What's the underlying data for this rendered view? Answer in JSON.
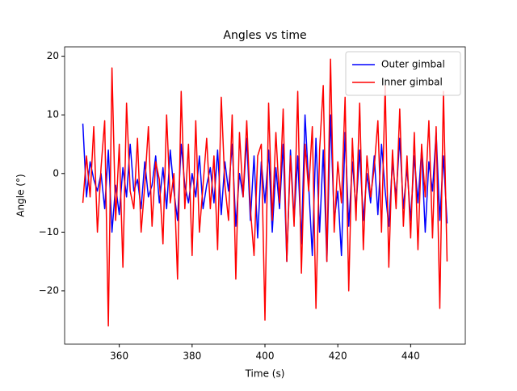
{
  "chart_data": {
    "type": "line",
    "title": "Angles vs time",
    "xlabel": "Time (s)",
    "ylabel": "Angle (°)",
    "x": [
      350,
      351,
      352,
      353,
      354,
      355,
      356,
      357,
      358,
      359,
      360,
      361,
      362,
      363,
      364,
      365,
      366,
      367,
      368,
      369,
      370,
      371,
      372,
      373,
      374,
      375,
      376,
      377,
      378,
      379,
      380,
      381,
      382,
      383,
      384,
      385,
      386,
      387,
      388,
      389,
      390,
      391,
      392,
      393,
      394,
      395,
      396,
      397,
      398,
      399,
      400,
      401,
      402,
      403,
      404,
      405,
      406,
      407,
      408,
      409,
      410,
      411,
      412,
      413,
      414,
      415,
      416,
      417,
      418,
      419,
      420,
      421,
      422,
      423,
      424,
      425,
      426,
      427,
      428,
      429,
      430,
      431,
      432,
      433,
      434,
      435,
      436,
      437,
      438,
      439,
      440,
      441,
      442,
      443,
      444,
      445,
      446,
      447,
      448,
      449,
      450
    ],
    "series": [
      {
        "name": "Outer gimbal",
        "color": "#0000ff",
        "values": [
          8.5,
          -4,
          2,
          -1,
          -3,
          0,
          -6,
          4,
          -10,
          -2,
          -7,
          1,
          -4,
          5,
          -3,
          -1,
          -6,
          2,
          -4,
          -2,
          3,
          -5,
          1,
          -6,
          4,
          -3,
          -8,
          5,
          -2,
          -5,
          0,
          -4,
          3,
          -6,
          -2,
          1,
          -5,
          4,
          -7,
          2,
          -3,
          5,
          -9,
          0,
          -4,
          6,
          -8,
          3,
          -11,
          2,
          -5,
          4,
          -10,
          1,
          -6,
          5,
          -15,
          4,
          -8,
          3,
          -12,
          10,
          -2,
          -14,
          6,
          -10,
          4,
          -15,
          10,
          -8,
          -3,
          -14,
          7,
          -9,
          2,
          -6,
          4,
          -8,
          0,
          -5,
          3,
          -7,
          5,
          -3,
          -9,
          2,
          -4,
          6,
          -6,
          1,
          -8,
          3,
          -5,
          4,
          -10,
          2,
          -3,
          7,
          -8,
          3,
          -8.5
        ]
      },
      {
        "name": "Inner gimbal",
        "color": "#ff0000",
        "values": [
          -5,
          3,
          -4,
          8,
          -10,
          1,
          9,
          -26,
          18,
          -8,
          5,
          -16,
          12,
          -3,
          -6,
          6,
          -10,
          -2,
          8,
          -9,
          2,
          -1,
          -12,
          10,
          -5,
          0,
          -18,
          14,
          -6,
          5,
          -14,
          9,
          -10,
          -2,
          6,
          -6,
          3,
          -13,
          13,
          -2,
          -8,
          10,
          -18,
          7,
          -4,
          9,
          -6,
          -14,
          3,
          5,
          -25,
          12,
          -8,
          7,
          -5,
          11,
          -15,
          3,
          -9,
          14,
          -17,
          5,
          -3,
          8,
          -23,
          4,
          15,
          -15,
          19.5,
          -10,
          2,
          -5,
          13,
          -20,
          6,
          -8,
          12,
          -13,
          3,
          -4,
          1,
          9,
          -10,
          15,
          -16,
          4,
          -6,
          11,
          -9,
          3,
          -11,
          7,
          -13,
          5,
          -4,
          9,
          -11,
          8,
          -23,
          14,
          -15
        ]
      }
    ],
    "xlim": [
      345,
      455
    ],
    "ylim": [
      -29.1,
      21.6
    ],
    "xticks": [
      360,
      380,
      400,
      420,
      440
    ],
    "yticks": [
      {
        "value": -20,
        "label": "−20"
      },
      {
        "value": -10,
        "label": "−10"
      },
      0,
      10,
      20
    ],
    "legend": "upper right"
  }
}
